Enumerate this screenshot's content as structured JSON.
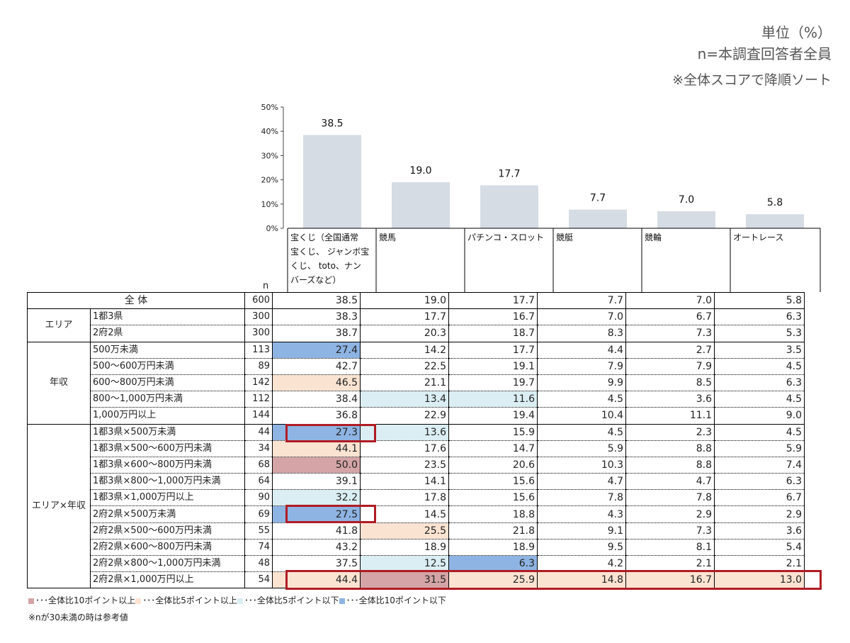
{
  "header": {
    "unit": "単位（%）",
    "sample": "n=本調査回答者全員",
    "sort_note": "※全体スコアで降順ソート"
  },
  "chart_data": {
    "type": "bar",
    "categories": [
      "宝くじ（全国通常宝くじ、 ジャンボ宝くじ、 toto、ナンバーズなど）",
      "競馬",
      "パチンコ・スロット",
      "競艇",
      "競輪",
      "オートレース"
    ],
    "values": [
      38.5,
      19.0,
      17.7,
      7.7,
      7.0,
      5.8
    ],
    "value_labels": [
      "38.5",
      "19.0",
      "17.7",
      "7.7",
      "7.0",
      "5.8"
    ],
    "ylim": [
      0,
      50
    ],
    "yticks": [
      "0%",
      "10%",
      "20%",
      "30%",
      "40%",
      "50%"
    ],
    "bar_color": "#d6dce4"
  },
  "table": {
    "n_header": "n",
    "col_headers": [
      [
        "宝くじ（全国通常",
        "宝くじ、 ジャンボ宝",
        "くじ、 toto、ナン",
        "バーズなど）"
      ],
      [
        "競馬"
      ],
      [
        "パチンコ・スロット"
      ],
      [
        "競艇"
      ],
      [
        "競輪"
      ],
      [
        "オートレース"
      ]
    ],
    "total": {
      "label": "全 体",
      "n": "600",
      "values": [
        "38.5",
        "19.0",
        "17.7",
        "7.7",
        "7.0",
        "5.8"
      ]
    },
    "groups": [
      {
        "label": "エリア",
        "rows": [
          {
            "label": "1都3県",
            "n": "300",
            "values": [
              "38.3",
              "17.7",
              "16.7",
              "7.0",
              "6.7",
              "6.3"
            ],
            "hl": [
              "",
              "",
              "",
              "",
              "",
              ""
            ]
          },
          {
            "label": "2府2県",
            "n": "300",
            "values": [
              "38.7",
              "20.3",
              "18.7",
              "8.3",
              "7.3",
              "5.3"
            ],
            "hl": [
              "",
              "",
              "",
              "",
              "",
              ""
            ]
          }
        ]
      },
      {
        "label": "年収",
        "rows": [
          {
            "label": "500万未満",
            "n": "113",
            "values": [
              "27.4",
              "14.2",
              "17.7",
              "4.4",
              "2.7",
              "3.5"
            ],
            "hl": [
              "b",
              "",
              "",
              "",
              "",
              ""
            ]
          },
          {
            "label": "500～600万円未満",
            "n": "89",
            "values": [
              "42.7",
              "22.5",
              "19.1",
              "7.9",
              "7.9",
              "4.5"
            ],
            "hl": [
              "",
              "",
              "",
              "",
              "",
              ""
            ]
          },
          {
            "label": "600～800万円未満",
            "n": "142",
            "values": [
              "46.5",
              "21.1",
              "19.7",
              "9.9",
              "8.5",
              "6.3"
            ],
            "hl": [
              "o",
              "",
              "",
              "",
              "",
              ""
            ]
          },
          {
            "label": "800～1,000万円未満",
            "n": "112",
            "values": [
              "38.4",
              "13.4",
              "11.6",
              "4.5",
              "3.6",
              "4.5"
            ],
            "hl": [
              "",
              "c",
              "c",
              "",
              "",
              ""
            ]
          },
          {
            "label": "1,000万円以上",
            "n": "144",
            "values": [
              "36.8",
              "22.9",
              "19.4",
              "10.4",
              "11.1",
              "9.0"
            ],
            "hl": [
              "",
              "",
              "",
              "",
              "",
              ""
            ]
          }
        ]
      },
      {
        "label": "エリア×年収",
        "rows": [
          {
            "label": "1都3県×500万未満",
            "n": "44",
            "values": [
              "27.3",
              "13.6",
              "15.9",
              "4.5",
              "2.3",
              "4.5"
            ],
            "hl": [
              "b",
              "c",
              "",
              "",
              "",
              ""
            ]
          },
          {
            "label": "1都3県×500～600万円未満",
            "n": "34",
            "values": [
              "44.1",
              "17.6",
              "14.7",
              "5.9",
              "8.8",
              "5.9"
            ],
            "hl": [
              "o",
              "",
              "",
              "",
              "",
              ""
            ]
          },
          {
            "label": "1都3県×600～800万円未満",
            "n": "68",
            "values": [
              "50.0",
              "23.5",
              "20.6",
              "10.3",
              "8.8",
              "7.4"
            ],
            "hl": [
              "r",
              "",
              "",
              "",
              "",
              ""
            ]
          },
          {
            "label": "1都3県×800～1,000万円未満",
            "n": "64",
            "values": [
              "39.1",
              "14.1",
              "15.6",
              "4.7",
              "4.7",
              "6.3"
            ],
            "hl": [
              "",
              "",
              "",
              "",
              "",
              ""
            ]
          },
          {
            "label": "1都3県×1,000万円以上",
            "n": "90",
            "values": [
              "32.2",
              "17.8",
              "15.6",
              "7.8",
              "7.8",
              "6.7"
            ],
            "hl": [
              "c",
              "",
              "",
              "",
              "",
              ""
            ]
          },
          {
            "label": "2府2県×500万未満",
            "n": "69",
            "values": [
              "27.5",
              "14.5",
              "18.8",
              "4.3",
              "2.9",
              "2.9"
            ],
            "hl": [
              "b",
              "",
              "",
              "",
              "",
              ""
            ]
          },
          {
            "label": "2府2県×500～600万円未満",
            "n": "55",
            "values": [
              "41.8",
              "25.5",
              "21.8",
              "9.1",
              "7.3",
              "3.6"
            ],
            "hl": [
              "",
              "o",
              "",
              "",
              "",
              ""
            ]
          },
          {
            "label": "2府2県×600～800万円未満",
            "n": "74",
            "values": [
              "43.2",
              "18.9",
              "18.9",
              "9.5",
              "8.1",
              "5.4"
            ],
            "hl": [
              "",
              "",
              "",
              "",
              "",
              ""
            ]
          },
          {
            "label": "2府2県×800～1,000万円未満",
            "n": "48",
            "values": [
              "37.5",
              "12.5",
              "6.3",
              "4.2",
              "2.1",
              "2.1"
            ],
            "hl": [
              "",
              "c",
              "b",
              "",
              "",
              ""
            ]
          },
          {
            "label": "2府2県×1,000万円以上",
            "n": "54",
            "values": [
              "44.4",
              "31.5",
              "25.9",
              "14.8",
              "16.7",
              "13.0"
            ],
            "hl": [
              "o",
              "r",
              "o",
              "o",
              "o",
              "o"
            ]
          }
        ]
      }
    ]
  },
  "legend": {
    "items": [
      {
        "key": "r",
        "color": "#d4a4a6",
        "text": "･･･全体比10ポイント以上"
      },
      {
        "key": "o",
        "color": "#fbe3d2",
        "text": "･･･全体比5ポイント以上"
      },
      {
        "key": "c",
        "color": "#daeef3",
        "text": "･･･全体比5ポイント以下"
      },
      {
        "key": "b",
        "color": "#8eb4e3",
        "text": "･･･全体比10ポイント以下"
      }
    ],
    "note": "※nが30未満の時は参考値"
  }
}
